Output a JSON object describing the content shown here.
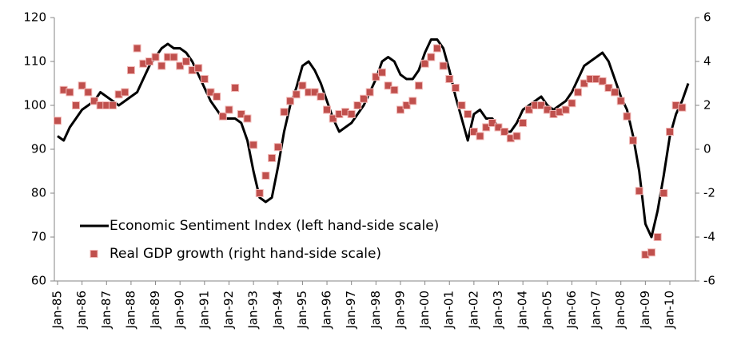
{
  "chart_data": {
    "type": "line",
    "categories": [
      "Jan-85",
      null,
      null,
      null,
      "Jan-86",
      null,
      null,
      null,
      "Jan-87",
      null,
      null,
      null,
      "Jan-88",
      null,
      null,
      null,
      "Jan-89",
      null,
      null,
      null,
      "Jan-90",
      null,
      null,
      null,
      "Jan-91",
      null,
      null,
      null,
      "Jan-92",
      null,
      null,
      null,
      "Jan-93",
      null,
      null,
      null,
      "Jan-94",
      null,
      null,
      null,
      "Jan-95",
      null,
      null,
      null,
      "Jan-96",
      null,
      null,
      null,
      "Jan-97",
      null,
      null,
      null,
      "Jan-98",
      null,
      null,
      null,
      "Jan-99",
      null,
      null,
      null,
      "Jan-00",
      null,
      null,
      null,
      "Jan-01",
      null,
      null,
      null,
      "Jan-02",
      null,
      null,
      null,
      "Jan-03",
      null,
      null,
      null,
      "Jan-04",
      null,
      null,
      null,
      "Jan-05",
      null,
      null,
      null,
      "Jan-06",
      null,
      null,
      null,
      "Jan-07",
      null,
      null,
      null,
      "Jan-08",
      null,
      null,
      null,
      "Jan-09",
      null,
      null,
      null,
      "Jan-10",
      null,
      null,
      null
    ],
    "series": [
      {
        "name": "Economic Sentiment Index (left hand-side scale)",
        "type": "line",
        "color": "#000000",
        "values": [
          93,
          92,
          95,
          97,
          99,
          100,
          101,
          103,
          102,
          101,
          100,
          101,
          102,
          103,
          106,
          109,
          111,
          113,
          114,
          113,
          113,
          112,
          110,
          107,
          104,
          101,
          99,
          97,
          97,
          97,
          96,
          92,
          85,
          79,
          78,
          79,
          86,
          94,
          100,
          104,
          109,
          110,
          108,
          105,
          101,
          97,
          94,
          95,
          96,
          98,
          100,
          103,
          106,
          110,
          111,
          110,
          107,
          106,
          106,
          108,
          112,
          115,
          115,
          113,
          108,
          102,
          97,
          92,
          98,
          99,
          97,
          97,
          95,
          94,
          94,
          96,
          99,
          100,
          101,
          102,
          100,
          99,
          100,
          101,
          103,
          106,
          109,
          110,
          111,
          112,
          110,
          106,
          102,
          99,
          93,
          85,
          73,
          70,
          76,
          84,
          93,
          98,
          101,
          105
        ]
      },
      {
        "name": "Real GDP growth (right hand-side scale)",
        "type": "scatter",
        "axis": "y2",
        "color": "#c0504d",
        "values": [
          1.3,
          2.7,
          2.6,
          2.0,
          2.9,
          2.6,
          2.2,
          2.0,
          2.0,
          2.0,
          2.5,
          2.6,
          3.6,
          4.6,
          3.9,
          4.0,
          4.2,
          3.8,
          4.2,
          4.2,
          3.8,
          4.0,
          3.6,
          3.7,
          3.2,
          2.6,
          2.4,
          1.5,
          1.8,
          2.8,
          1.6,
          1.4,
          0.2,
          -2.0,
          -1.2,
          -0.4,
          0.1,
          1.7,
          2.2,
          2.5,
          2.9,
          2.6,
          2.6,
          2.4,
          1.8,
          1.4,
          1.6,
          1.7,
          1.6,
          2.0,
          2.3,
          2.6,
          3.3,
          3.5,
          2.9,
          2.7,
          1.8,
          2.0,
          2.2,
          2.9,
          3.9,
          4.2,
          4.6,
          3.8,
          3.2,
          2.8,
          2.0,
          1.6,
          0.8,
          0.6,
          1.0,
          1.2,
          1.0,
          0.8,
          0.5,
          0.6,
          1.2,
          1.8,
          2.0,
          2.0,
          1.8,
          1.6,
          1.7,
          1.8,
          2.1,
          2.6,
          3.0,
          3.2,
          3.2,
          3.1,
          2.8,
          2.6,
          2.2,
          1.5,
          0.4,
          -1.9,
          -4.8,
          -4.7,
          -4.0,
          -2.0,
          0.8,
          2.0,
          1.9,
          null
        ]
      }
    ],
    "ylim": [
      60,
      120
    ],
    "yticks": [
      60,
      70,
      80,
      90,
      100,
      110,
      120
    ],
    "y2lim": [
      -6,
      6
    ],
    "y2ticks": [
      -6,
      -4,
      -2,
      0,
      2,
      4,
      6
    ],
    "grid": false,
    "legend": "lower left"
  }
}
